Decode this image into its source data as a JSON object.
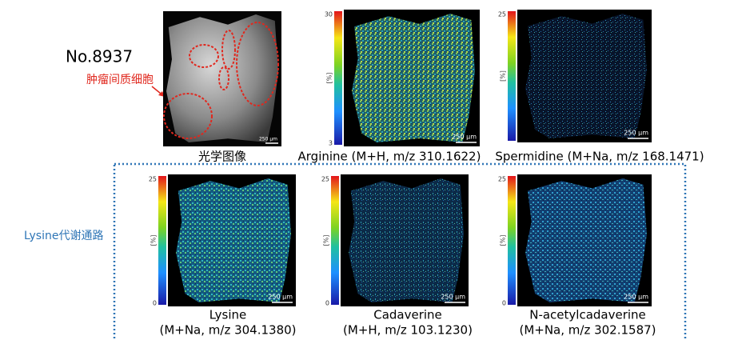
{
  "sample": "No.8937",
  "annotation": "肿瘤间质细胞",
  "pathway": "Lysine代谢通路",
  "optical": {
    "caption": "光学图像",
    "scale": "250 μm"
  },
  "panels": [
    {
      "caption": [
        "Arginine (M+H, m/z 310.1622)"
      ],
      "max": 30,
      "unit": "[%]",
      "min": 3,
      "scale": "250 μm"
    },
    {
      "caption": [
        "Spermidine (M+Na, m/z 168.1471)"
      ],
      "max": 25,
      "unit": "[%]",
      "scale": "250 μm"
    },
    {
      "caption": [
        "Lysine",
        "(M+Na, m/z 304.1380)"
      ],
      "max": 25,
      "unit": "[%]",
      "min": 0,
      "scale": "250 μm"
    },
    {
      "caption": [
        "Cadaverine",
        "(M+H, m/z 103.1230)"
      ],
      "max": 25,
      "unit": "[%]",
      "min": 0,
      "scale": "250 μm"
    },
    {
      "caption": [
        "N-acetylcadaverine",
        "(M+Na, m/z 302.1587)"
      ],
      "max": 25,
      "unit": "[%]",
      "min": 0,
      "scale": "250 μm"
    }
  ]
}
